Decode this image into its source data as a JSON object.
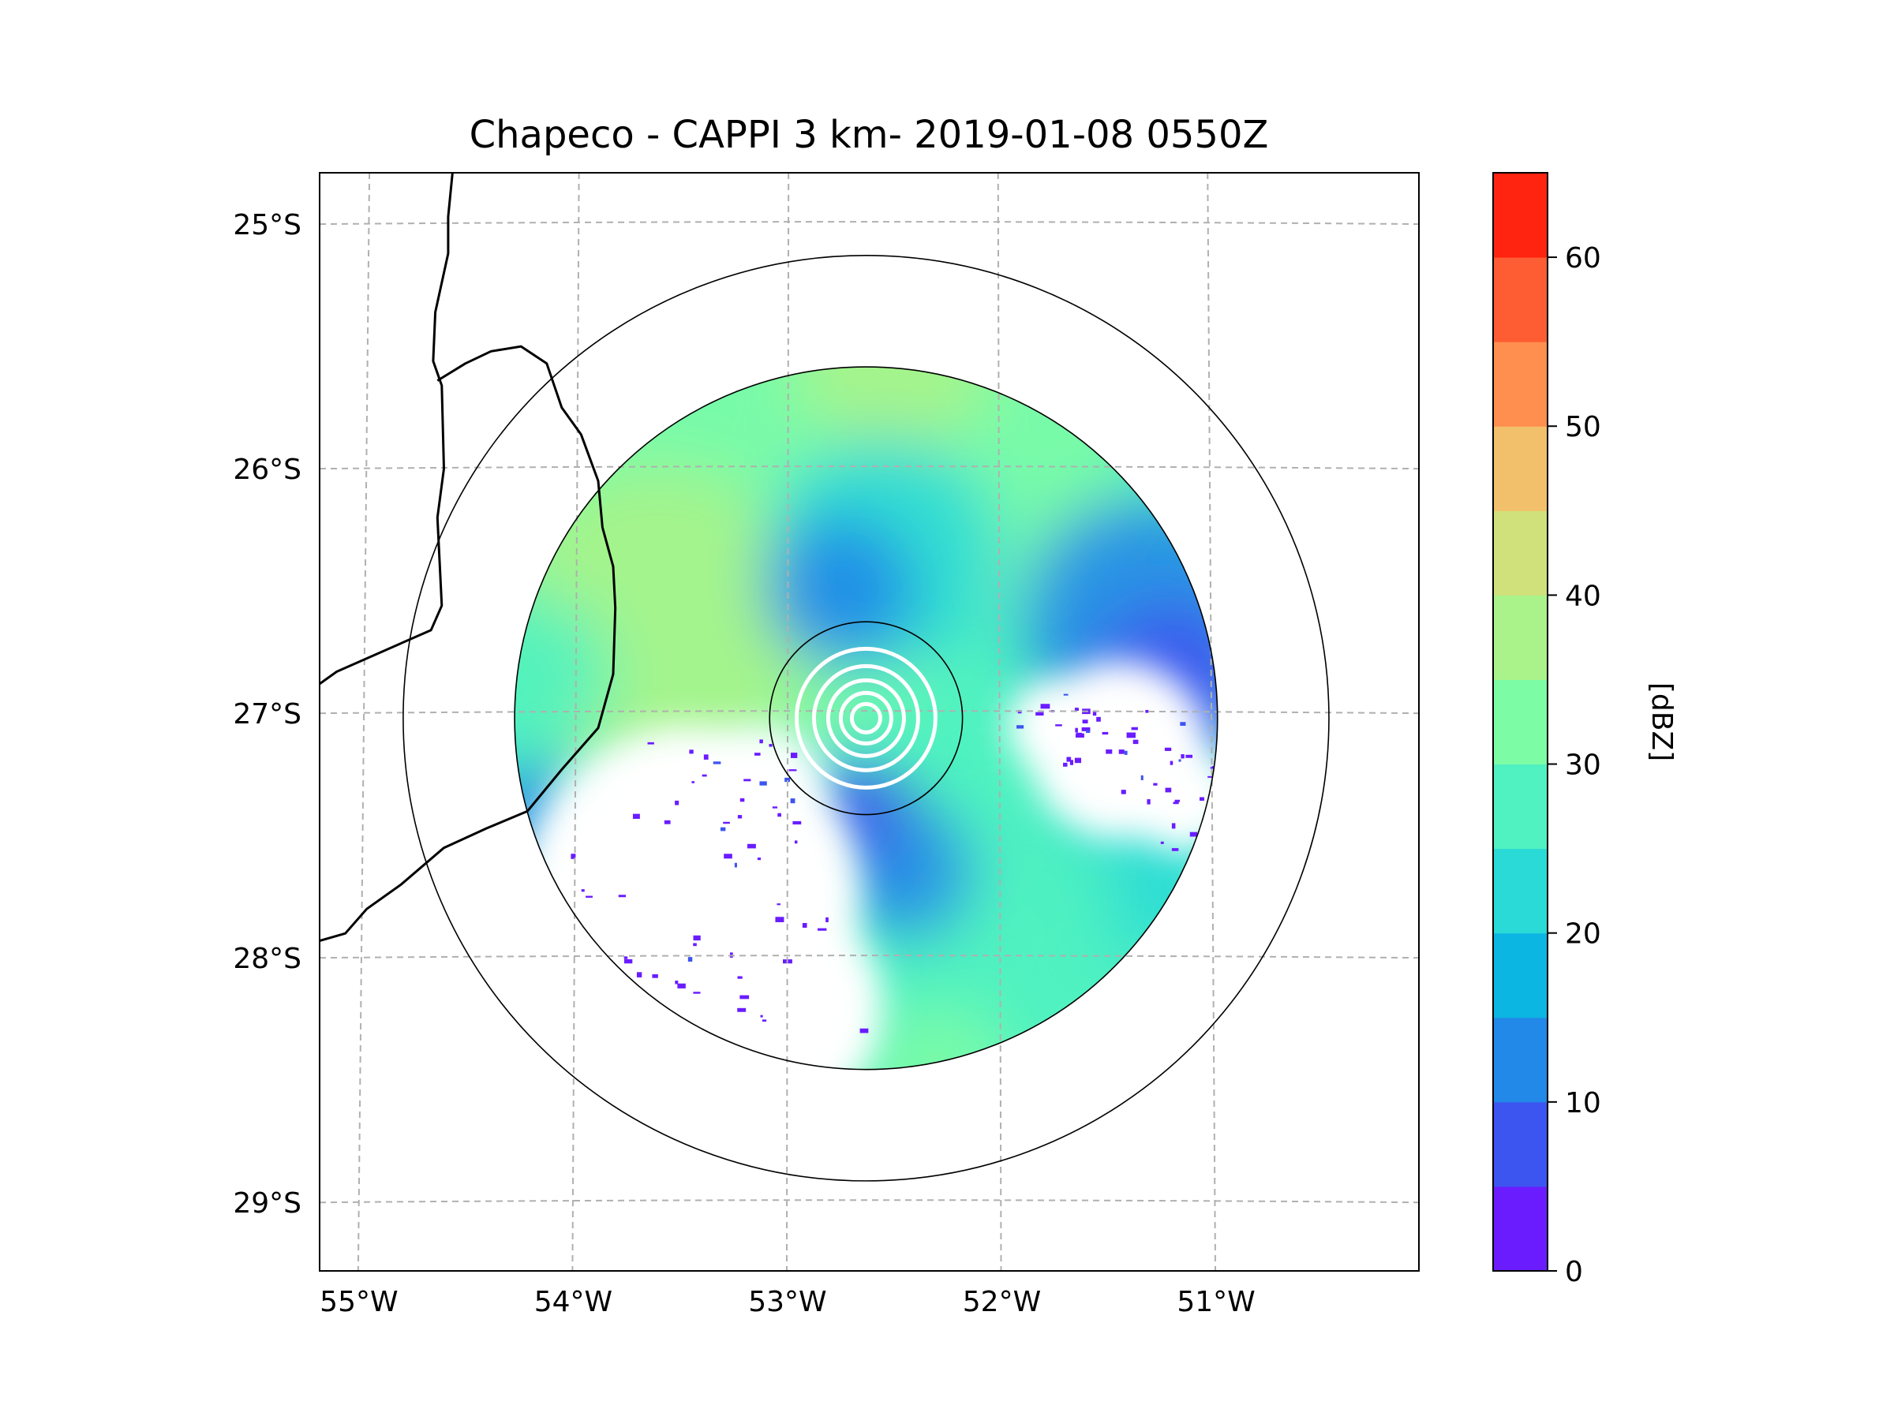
{
  "title": "Chapeco - CAPPI 3 km- 2019-01-08 0550Z",
  "map": {
    "lon_range": [
      -55.18,
      -50.05
    ],
    "lat_range": [
      -29.28,
      -24.79
    ],
    "lat_ticks": [
      {
        "value": -25,
        "label": "25°S"
      },
      {
        "value": -26,
        "label": "26°S"
      },
      {
        "value": -27,
        "label": "27°S"
      },
      {
        "value": -28,
        "label": "28°S"
      },
      {
        "value": -29,
        "label": "29°S"
      }
    ],
    "lon_ticks": [
      {
        "value": -55,
        "label": "55°W"
      },
      {
        "value": -54,
        "label": "54°W"
      },
      {
        "value": -53,
        "label": "53°W"
      },
      {
        "value": -52,
        "label": "52°W"
      },
      {
        "value": -51,
        "label": "51°W"
      }
    ],
    "radar_center": {
      "lon": -52.63,
      "lat": -27.02
    },
    "range_rings_deg": [
      0.45,
      1.64,
      2.16
    ],
    "gridlines": true,
    "borders": [
      [
        [
          -54.56,
          -24.79
        ],
        [
          -54.58,
          -24.97
        ],
        [
          -54.58,
          -25.12
        ],
        [
          -54.64,
          -25.36
        ],
        [
          -54.65,
          -25.56
        ],
        [
          -54.61,
          -25.66
        ],
        [
          -54.6,
          -26.0
        ],
        [
          -54.63,
          -26.2
        ],
        [
          -54.61,
          -26.56
        ],
        [
          -54.66,
          -26.66
        ],
        [
          -55.1,
          -26.83
        ],
        [
          -55.18,
          -26.88
        ]
      ],
      [
        [
          -54.63,
          -25.64
        ],
        [
          -54.5,
          -25.57
        ],
        [
          -54.38,
          -25.52
        ],
        [
          -54.24,
          -25.5
        ],
        [
          -54.12,
          -25.57
        ],
        [
          -54.05,
          -25.75
        ],
        [
          -53.96,
          -25.86
        ],
        [
          -53.88,
          -26.05
        ],
        [
          -53.86,
          -26.24
        ],
        [
          -53.81,
          -26.4
        ],
        [
          -53.8,
          -26.57
        ],
        [
          -53.81,
          -26.84
        ],
        [
          -53.88,
          -27.06
        ],
        [
          -54.05,
          -27.23
        ],
        [
          -54.21,
          -27.4
        ],
        [
          -54.4,
          -27.47
        ],
        [
          -54.6,
          -27.55
        ],
        [
          -54.8,
          -27.7
        ],
        [
          -54.96,
          -27.8
        ],
        [
          -55.06,
          -27.9
        ],
        [
          -55.18,
          -27.93
        ]
      ]
    ]
  },
  "colorbar": {
    "label": "[dBZ]",
    "min": 0,
    "max": 65,
    "step": 5,
    "tick_values": [
      0,
      10,
      20,
      30,
      40,
      50,
      60
    ],
    "tick_labels": [
      "0",
      "10",
      "20",
      "30",
      "40",
      "50",
      "60"
    ],
    "colors": [
      "#6a1cff",
      "#3d55f0",
      "#2289e8",
      "#0cb6e2",
      "#2adad6",
      "#4ff2c0",
      "#7dfca6",
      "#a9f38a",
      "#d0e07a",
      "#f2c06a",
      "#fe8f4f",
      "#fe5c32",
      "#fe2410"
    ]
  },
  "chart_data": {
    "type": "heatmap",
    "title": "Chapeco - CAPPI 3 km- 2019-01-08 0550Z",
    "variable_label": "[dBZ]",
    "range": [
      0,
      65
    ],
    "regions": [
      {
        "lon": -53.2,
        "lat": -26.2,
        "r": 1.15,
        "dbz": 32
      },
      {
        "lon": -52.2,
        "lat": -25.85,
        "r": 0.85,
        "dbz": 32
      },
      {
        "lon": -53.6,
        "lat": -26.65,
        "r": 0.75,
        "dbz": 37
      },
      {
        "lon": -52.5,
        "lat": -25.55,
        "r": 0.45,
        "dbz": 37
      },
      {
        "lon": -54.2,
        "lat": -26.85,
        "r": 0.38,
        "dbz": 27
      },
      {
        "lon": -52.55,
        "lat": -26.35,
        "r": 0.55,
        "dbz": 22
      },
      {
        "lon": -52.75,
        "lat": -26.5,
        "r": 0.35,
        "dbz": 14
      },
      {
        "lon": -51.35,
        "lat": -26.6,
        "r": 0.55,
        "dbz": 12
      },
      {
        "lon": -51.2,
        "lat": -26.9,
        "r": 0.4,
        "dbz": 7
      },
      {
        "lon": -51.4,
        "lat": -27.6,
        "r": 0.45,
        "dbz": 22
      },
      {
        "lon": -51.9,
        "lat": -27.8,
        "r": 0.45,
        "dbz": 26
      },
      {
        "lon": -52.2,
        "lat": -28.2,
        "r": 0.5,
        "dbz": 27
      },
      {
        "lon": -52.3,
        "lat": -28.5,
        "r": 0.35,
        "dbz": 30
      },
      {
        "lon": -52.45,
        "lat": -27.65,
        "r": 0.32,
        "dbz": 12
      },
      {
        "lon": -52.7,
        "lat": -27.4,
        "r": 0.25,
        "dbz": 6
      },
      {
        "lon": -54.2,
        "lat": -27.45,
        "r": 0.28,
        "dbz": 10
      }
    ]
  }
}
